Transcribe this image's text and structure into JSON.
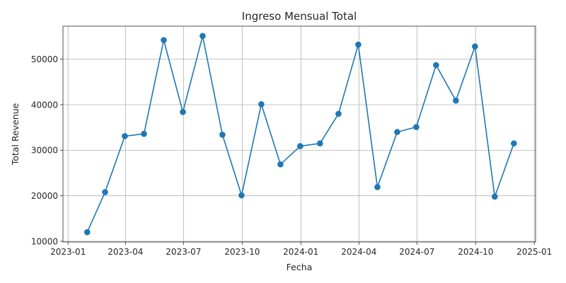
{
  "chart_data": {
    "type": "line",
    "title": "Ingreso Mensual Total",
    "xlabel": "Fecha",
    "ylabel": "Total Revenue",
    "x": [
      "2023-01-31",
      "2023-02-28",
      "2023-03-31",
      "2023-04-30",
      "2023-05-31",
      "2023-06-30",
      "2023-07-31",
      "2023-08-31",
      "2023-09-30",
      "2023-10-31",
      "2023-11-30",
      "2023-12-31",
      "2024-01-31",
      "2024-02-29",
      "2024-03-31",
      "2024-04-30",
      "2024-05-31",
      "2024-06-30",
      "2024-07-31",
      "2024-08-31",
      "2024-09-30",
      "2024-10-31",
      "2024-11-30"
    ],
    "series": [
      {
        "values": [
          12000,
          20800,
          33100,
          33600,
          54200,
          38400,
          55100,
          33400,
          20100,
          40100,
          26900,
          30900,
          31500,
          38000,
          53200,
          21900,
          34000,
          35100,
          48700,
          40900,
          52800,
          19800,
          31500
        ],
        "color": "#1f77b4",
        "marker": "circle"
      }
    ],
    "x_ticks": [
      {
        "date": "2023-01-01",
        "label": "2023-01"
      },
      {
        "date": "2023-04-01",
        "label": "2023-04"
      },
      {
        "date": "2023-07-01",
        "label": "2023-07"
      },
      {
        "date": "2023-10-01",
        "label": "2023-10"
      },
      {
        "date": "2024-01-01",
        "label": "2024-01"
      },
      {
        "date": "2024-04-01",
        "label": "2024-04"
      },
      {
        "date": "2024-07-01",
        "label": "2024-07"
      },
      {
        "date": "2024-10-01",
        "label": "2024-10"
      },
      {
        "date": "2025-01-01",
        "label": "2025-01"
      }
    ],
    "y_ticks": [
      10000,
      20000,
      30000,
      40000,
      50000
    ],
    "xlim": [
      "2022-12-24",
      "2025-01-03"
    ],
    "ylim": [
      9850,
      57250
    ],
    "grid": true,
    "legend": "none"
  }
}
